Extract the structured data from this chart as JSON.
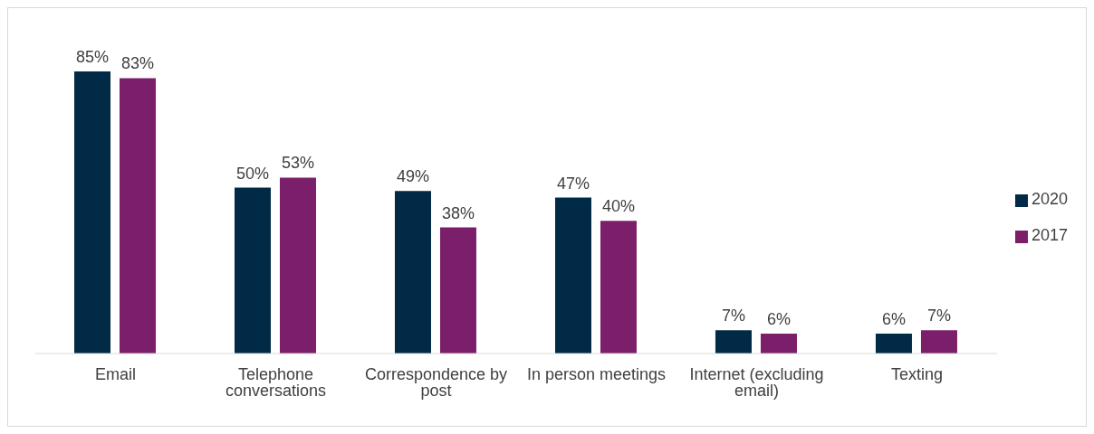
{
  "chart_data": {
    "type": "bar",
    "categories": [
      "Email",
      "Telephone conversations",
      "Correspondence by post",
      "In person meetings",
      "Internet (excluding email)",
      "Texting"
    ],
    "series": [
      {
        "name": "2020",
        "color": "#002a45",
        "values": [
          85,
          50,
          49,
          47,
          7,
          6
        ],
        "value_labels": [
          "85%",
          "50%",
          "49%",
          "47%",
          "7%",
          "6%"
        ]
      },
      {
        "name": "2017",
        "color": "#7b1f6a",
        "values": [
          83,
          53,
          38,
          40,
          6,
          7
        ],
        "value_labels": [
          "83%",
          "53%",
          "38%",
          "40%",
          "6%",
          "7%"
        ]
      }
    ],
    "grid": false,
    "legend": "right"
  }
}
